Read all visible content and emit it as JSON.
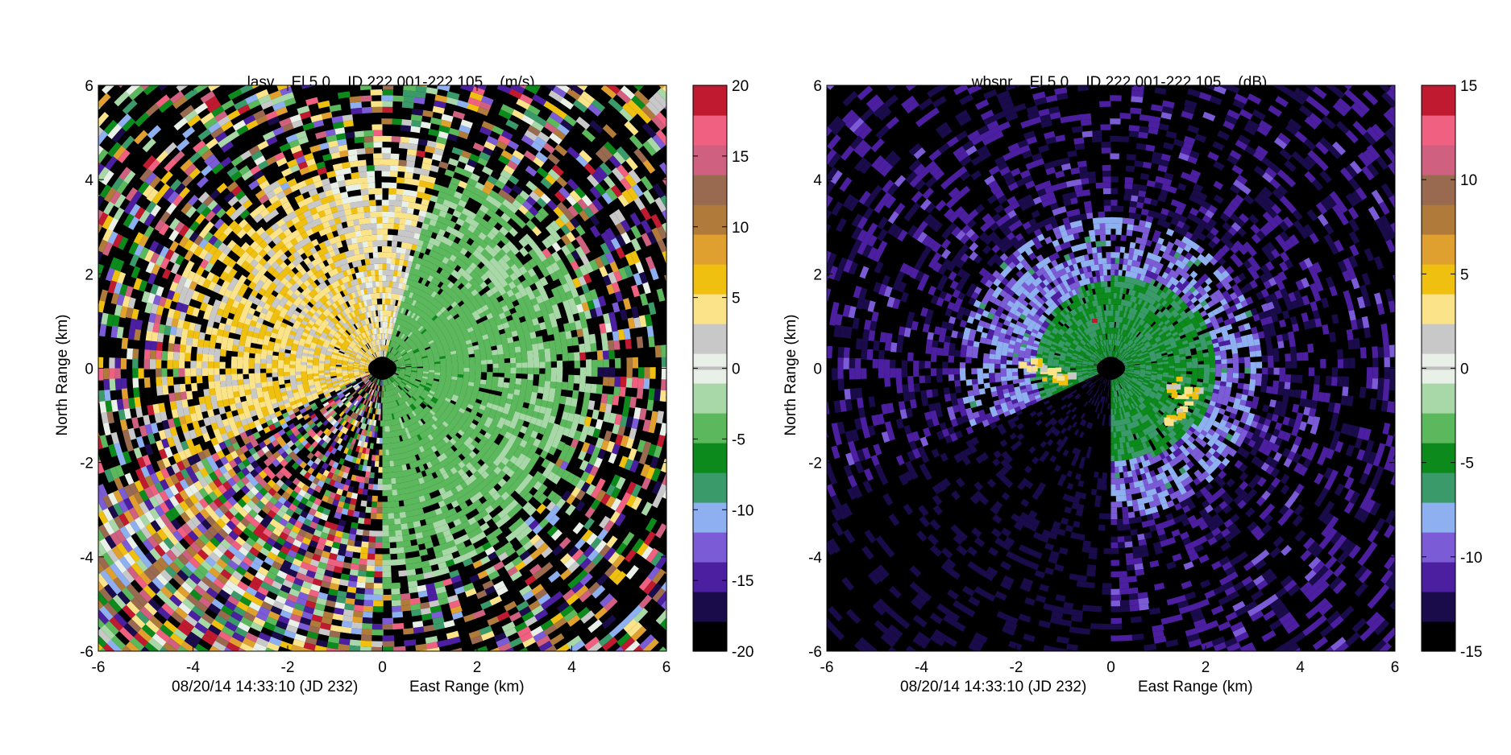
{
  "chart_data": [
    {
      "type": "heatmap",
      "plot_kind": "radar PPI scan",
      "title": {
        "field": "lasv",
        "elevation": "El 5.0",
        "id": "ID 222.001-222.105",
        "unit": "(m/s)"
      },
      "xlabel": "East Range (km)",
      "ylabel": "North Range (km)",
      "timestamp": "08/20/14 14:33:10 (JD 232)",
      "xlim": [
        -6,
        6
      ],
      "ylim": [
        -6,
        6
      ],
      "x_ticks": [
        -6,
        -4,
        -2,
        0,
        2,
        4,
        6
      ],
      "y_ticks": [
        -6,
        -4,
        -2,
        0,
        2,
        4,
        6
      ],
      "colorbar": {
        "range": [
          -20,
          20
        ],
        "ticks": [
          -20,
          -15,
          -10,
          -5,
          0,
          5,
          10,
          15,
          20
        ],
        "colors": [
          "#000000",
          "#1a0b4a",
          "#4b1fa0",
          "#7b5cd6",
          "#8fb0f0",
          "#3a9a6a",
          "#0c8a1c",
          "#5cb85c",
          "#a8d8a8",
          "#e8f0e8",
          "#c8c8c8",
          "#fbe38a",
          "#f0c010",
          "#e0a030",
          "#b07a3a",
          "#9a6a50",
          "#d06080",
          "#f06080",
          "#c01a30"
        ]
      },
      "clutter_sector_azimuth_deg": [
        180,
        245
      ],
      "regions": [
        {
          "sector": "west (azimuth 245-340 deg)",
          "value_range": [
            2,
            7
          ],
          "appearance": "orange, positive velocities"
        },
        {
          "sector": "east (azimuth 0-180 deg)",
          "value_range": [
            -6,
            -1
          ],
          "appearance": "green, negative velocities"
        },
        {
          "sector": "far range all azimuths",
          "value_range": [
            -20,
            20
          ],
          "appearance": "noisy speckle"
        }
      ]
    },
    {
      "type": "heatmap",
      "plot_kind": "radar PPI scan",
      "title": {
        "field": "wbsnr",
        "elevation": "El 5.0",
        "id": "ID 222.001-222.105",
        "unit": "(dB)"
      },
      "xlabel": "East Range (km)",
      "ylabel": "North Range (km)",
      "timestamp": "08/20/14 14:33:10 (JD 232)",
      "xlim": [
        -6,
        6
      ],
      "ylim": [
        -6,
        6
      ],
      "x_ticks": [
        -6,
        -4,
        -2,
        0,
        2,
        4,
        6
      ],
      "y_ticks": [
        -6,
        -4,
        -2,
        0,
        2,
        4,
        6
      ],
      "colorbar": {
        "range": [
          -15,
          15
        ],
        "ticks": [
          -15,
          -10,
          -5,
          0,
          5,
          10,
          15
        ],
        "colors": [
          "#000000",
          "#1a0b4a",
          "#4b1fa0",
          "#7b5cd6",
          "#8fb0f0",
          "#3a9a6a",
          "#0c8a1c",
          "#5cb85c",
          "#a8d8a8",
          "#e8f0e8",
          "#c8c8c8",
          "#fbe38a",
          "#f0c010",
          "#e0a030",
          "#b07a3a",
          "#9a6a50",
          "#d06080",
          "#f06080",
          "#c01a30"
        ]
      },
      "clutter_sector_azimuth_deg": [
        180,
        245
      ],
      "regions": [
        {
          "sector": "near range (< 2.5 km)",
          "value_range": [
            -8,
            -2
          ],
          "appearance": "green"
        },
        {
          "sector": "mid/far range",
          "value_range": [
            -15,
            -10
          ],
          "appearance": "purple / blue speckle"
        },
        {
          "sector": "hot spots near (1.4,-0.7) and (-1.5,0)",
          "value_range": [
            2,
            5
          ],
          "appearance": "yellow / white"
        }
      ]
    }
  ]
}
